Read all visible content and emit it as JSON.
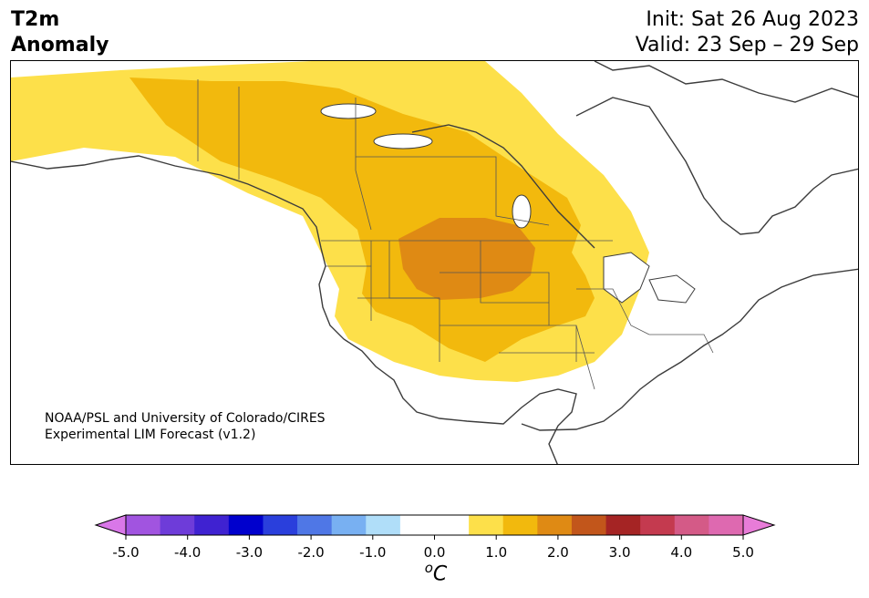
{
  "header": {
    "title_line1": "T2m",
    "title_line2": "Anomaly",
    "init": "Init: Sat 26 Aug 2023",
    "valid": "Valid: 23 Sep – 29 Sep"
  },
  "map": {
    "credit_line1": "NOAA/PSL and University of Colorado/CIRES",
    "credit_line2": "Experimental LIM Forecast (v1.2)",
    "anomaly_fields": [
      {
        "level": "0.5-1.0",
        "color": "#fde04a"
      },
      {
        "level": "1.0-1.5",
        "color": "#f2b90d"
      },
      {
        "level": "1.5-2.0",
        "color": "#df8a14"
      }
    ]
  },
  "colorbar": {
    "ticks": [
      "-5.0",
      "-4.0",
      "-3.0",
      "-2.0",
      "-1.0",
      "0.0",
      "1.0",
      "2.0",
      "3.0",
      "4.0",
      "5.0"
    ],
    "unit_base": "C",
    "unit_sup": "o",
    "colors": [
      "#d977e8",
      "#a154e0",
      "#6e3cd9",
      "#3f22d1",
      "#0000cd",
      "#2a3fdc",
      "#4f77e6",
      "#78b0f2",
      "#b0def9",
      "#ffffff",
      "#ffffff",
      "#fde04a",
      "#f2b90d",
      "#df8a14",
      "#c2561b",
      "#a52424",
      "#c43a4f",
      "#d45a87",
      "#de69b0",
      "#e87cd8"
    ]
  }
}
